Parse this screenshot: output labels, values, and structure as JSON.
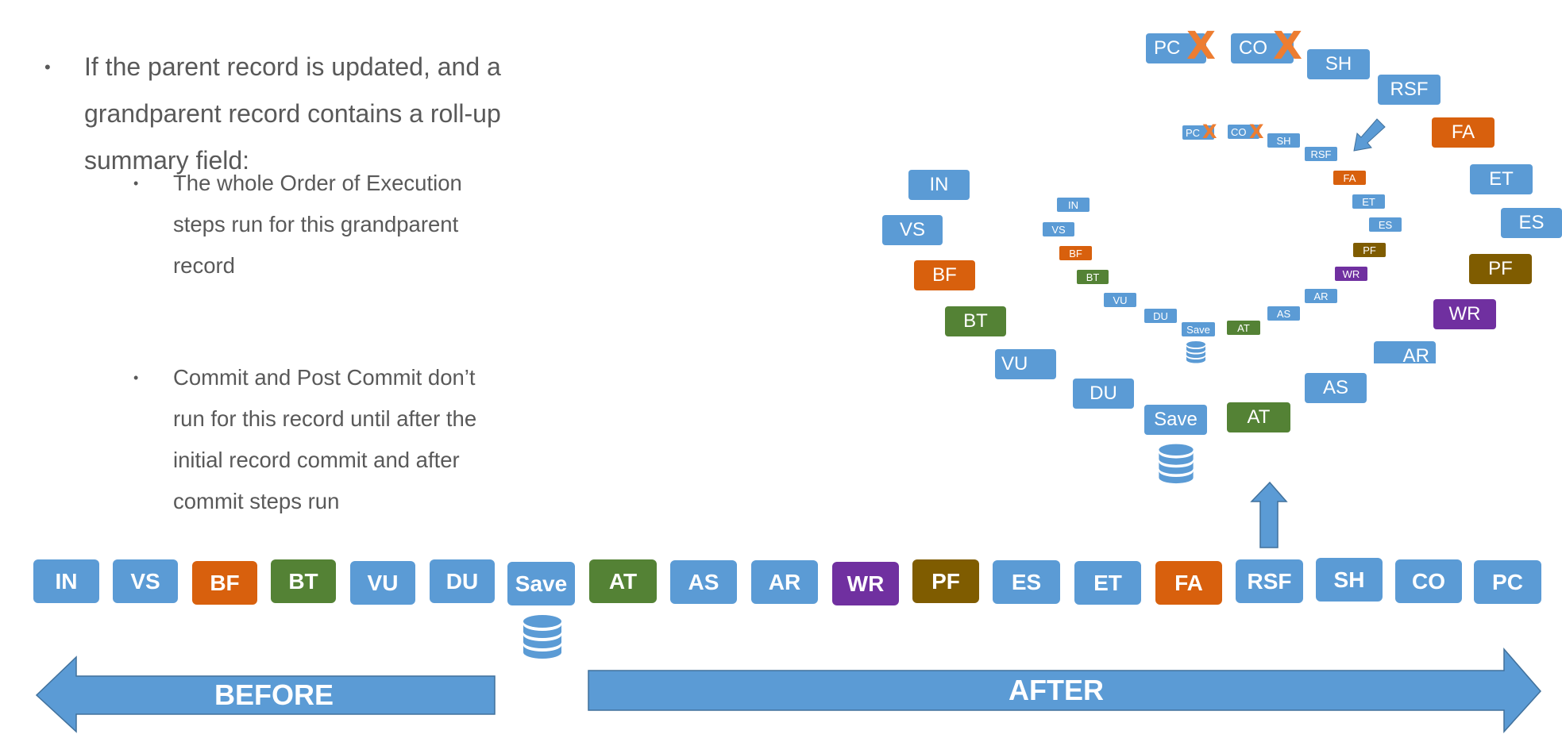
{
  "bullets": {
    "main": "If the parent record is updated, and a grandparent record contains a roll-up summary field:",
    "sub1": "The whole Order of Execution steps run for this grandparent record",
    "sub2": "Commit and Post Commit don’t run for this record until after the initial record commit and after commit steps run",
    "bullet_char": "•"
  },
  "steps": [
    {
      "label": "IN",
      "color": "#5b9bd5"
    },
    {
      "label": "VS",
      "color": "#5b9bd5"
    },
    {
      "label": "BF",
      "color": "#d8600d"
    },
    {
      "label": "BT",
      "color": "#548235"
    },
    {
      "label": "VU",
      "color": "#5b9bd5"
    },
    {
      "label": "DU",
      "color": "#5b9bd5"
    },
    {
      "label": "Save",
      "color": "#5b9bd5"
    },
    {
      "label": "AT",
      "color": "#548235"
    },
    {
      "label": "AS",
      "color": "#5b9bd5"
    },
    {
      "label": "AR",
      "color": "#5b9bd5"
    },
    {
      "label": "WR",
      "color": "#7030a0"
    },
    {
      "label": "PF",
      "color": "#7f5c00"
    },
    {
      "label": "ES",
      "color": "#5b9bd5"
    },
    {
      "label": "ET",
      "color": "#5b9bd5"
    },
    {
      "label": "FA",
      "color": "#d8600d"
    },
    {
      "label": "RSF",
      "color": "#5b9bd5"
    },
    {
      "label": "SH",
      "color": "#5b9bd5"
    },
    {
      "label": "CO",
      "color": "#5b9bd5"
    },
    {
      "label": "PC",
      "color": "#5b9bd5"
    }
  ],
  "cancel_mark": "X",
  "arrows": {
    "before": "BEFORE",
    "after": "AFTER",
    "color": "#5b9bd5"
  },
  "icons": {
    "database": "database-icon",
    "cancel": "x-mark-icon"
  }
}
